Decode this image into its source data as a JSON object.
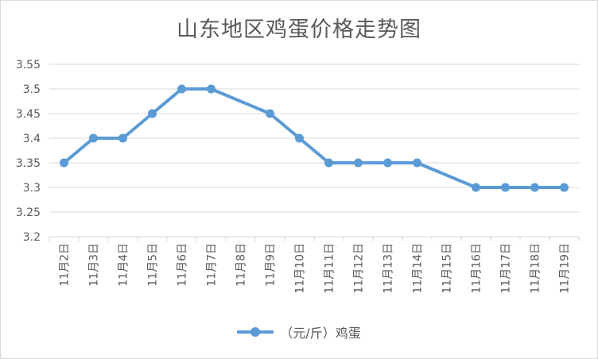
{
  "chart_data": {
    "type": "line",
    "title": "山东地区鸡蛋价格走势图",
    "categories": [
      "11月2日",
      "11月3日",
      "11月4日",
      "11月5日",
      "11月6日",
      "11月7日",
      "11月8日",
      "11月9日",
      "11月10日",
      "11月11日",
      "11月12日",
      "11月13日",
      "11月14日",
      "11月15日",
      "11月16日",
      "11月17日",
      "11月18日",
      "11月19日"
    ],
    "series": [
      {
        "name": "（元/斤）鸡蛋",
        "values": [
          3.35,
          3.4,
          3.4,
          3.45,
          3.5,
          3.5,
          null,
          3.45,
          3.4,
          3.35,
          3.35,
          3.35,
          3.35,
          null,
          3.3,
          3.3,
          3.3,
          3.3
        ],
        "color": "#5b9bd5"
      }
    ],
    "yticks": [
      "3.2",
      "3.25",
      "3.3",
      "3.35",
      "3.4",
      "3.45",
      "3.5",
      "3.55"
    ],
    "ylim": [
      3.2,
      3.55
    ],
    "grid": true,
    "legend": "bottom",
    "xlabel": "",
    "ylabel": ""
  },
  "colors": {
    "line": "#5b9bd5",
    "grid": "#d9d9d9",
    "text": "#595959"
  }
}
